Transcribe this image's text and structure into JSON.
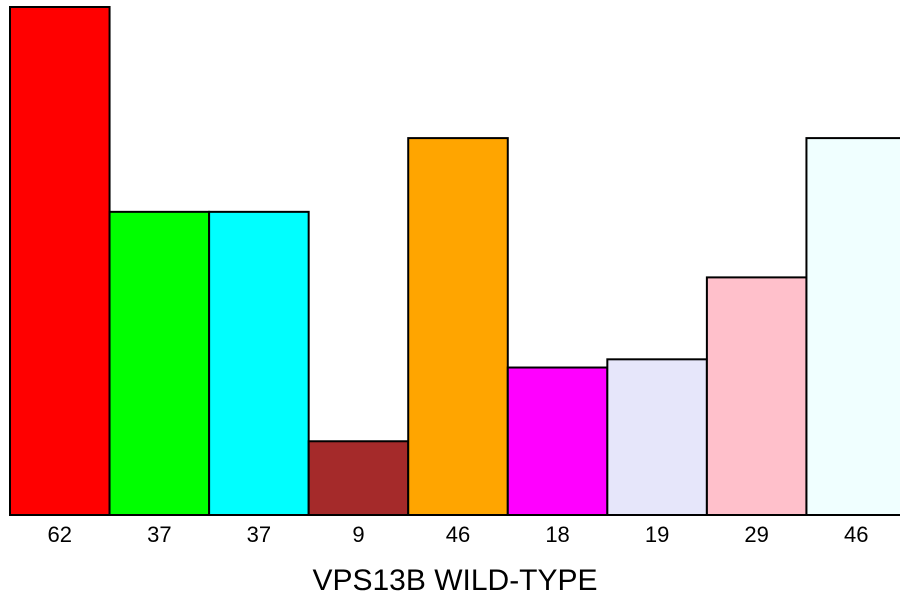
{
  "chart_data": {
    "type": "bar",
    "categories": [
      "62",
      "37",
      "37",
      "9",
      "46",
      "18",
      "19",
      "29",
      "46"
    ],
    "values": [
      62,
      37,
      37,
      9,
      46,
      18,
      19,
      29,
      46
    ],
    "colors": [
      "#ff0000",
      "#00ff00",
      "#00ffff",
      "#a52a2a",
      "#ffa500",
      "#ff00ff",
      "#e6e6fa",
      "#ffc0cb",
      "#f0ffff"
    ],
    "title": "",
    "xlabel": "VPS13B WILD-TYPE",
    "ylabel": "",
    "ylim": [
      0,
      62
    ],
    "grid": false,
    "legend": "none"
  }
}
